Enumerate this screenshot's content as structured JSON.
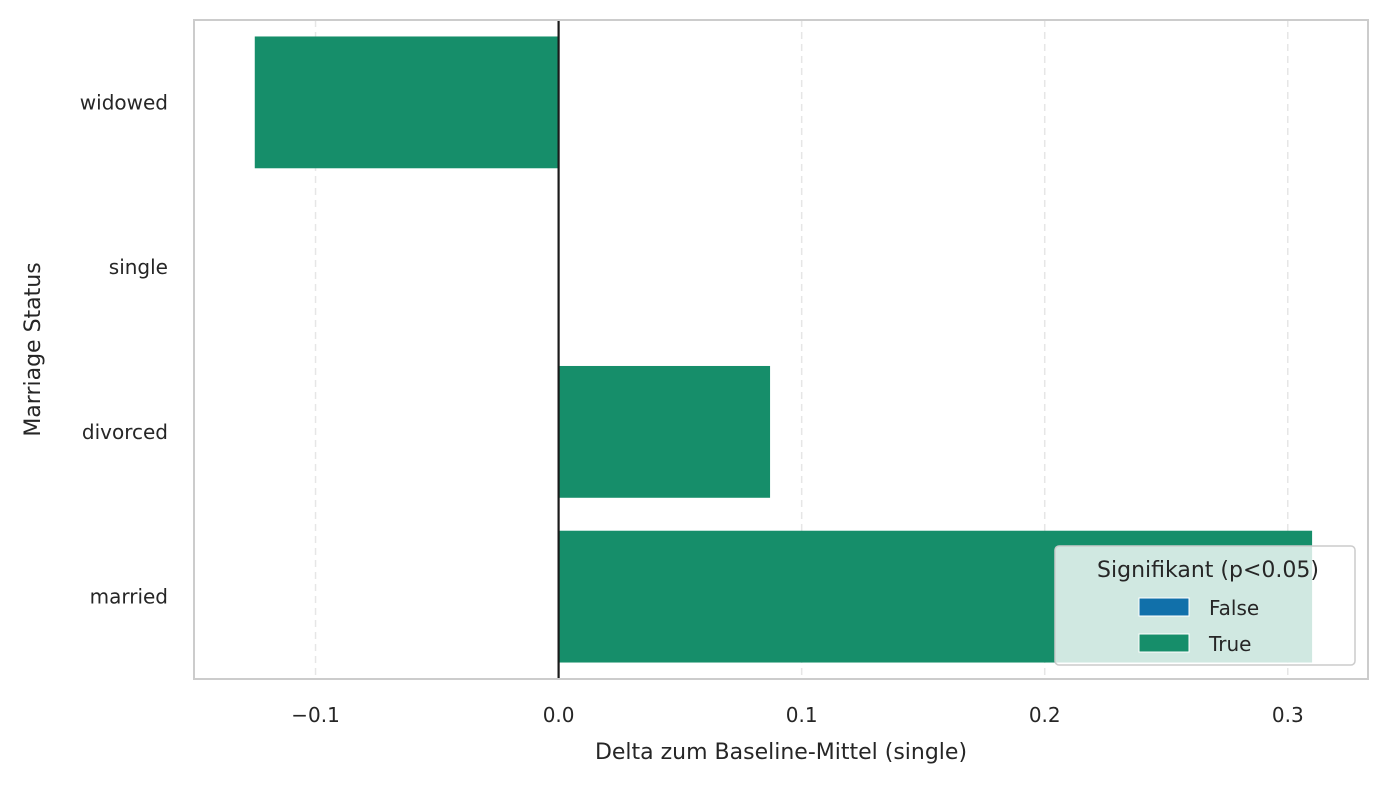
{
  "chart_data": {
    "type": "bar",
    "orientation": "horizontal",
    "categories": [
      "widowed",
      "single",
      "divorced",
      "married"
    ],
    "values": [
      -0.125,
      0.0,
      0.087,
      0.31
    ],
    "significant": [
      true,
      true,
      true,
      true
    ],
    "xlabel": "Delta zum Baseline-Mittel (single)",
    "ylabel": "Marriage Status",
    "xlim": [
      -0.15,
      0.333
    ],
    "xticks": [
      -0.1,
      0.0,
      0.1,
      0.2,
      0.3
    ],
    "xtick_labels": [
      "−0.1",
      "0.0",
      "0.1",
      "0.2",
      "0.3"
    ],
    "reference_line_x": 0,
    "grid": "x-dashed",
    "legend": {
      "title": "Signifikant (p<0.05)",
      "placement": "bottom-right",
      "entries": [
        {
          "label": "False",
          "color": "#1170aa"
        },
        {
          "label": "True",
          "color": "#168e6a"
        }
      ]
    },
    "colors": {
      "true": "#168e6a",
      "false": "#1170aa"
    }
  }
}
